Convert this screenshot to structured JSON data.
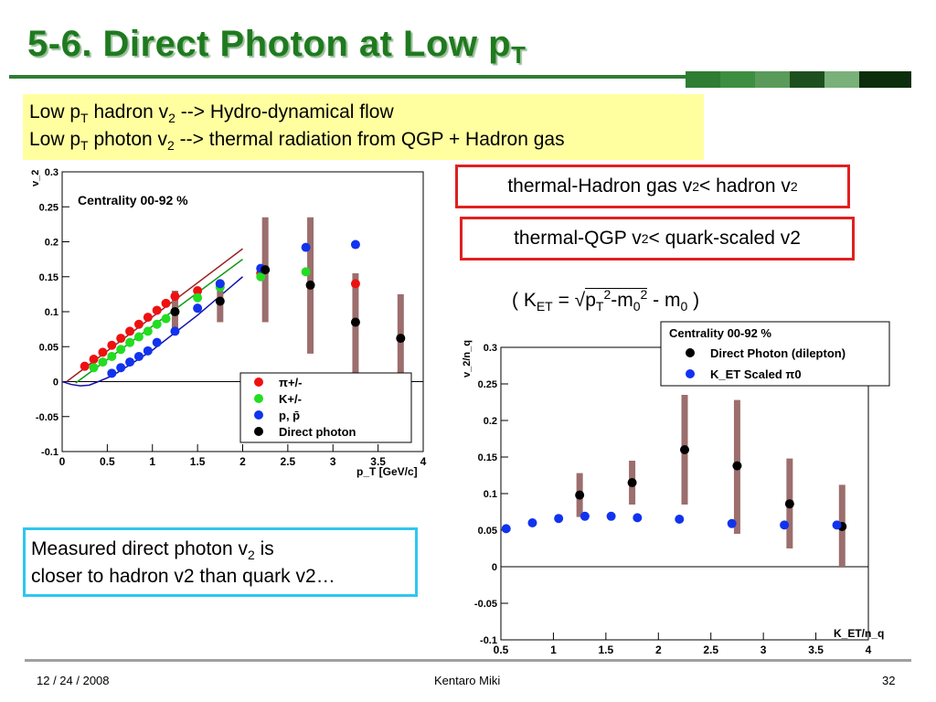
{
  "slide": {
    "title": "5-6. Direct Photon at Low p",
    "title_sub": "T",
    "intro_line1_a": "Low p",
    "intro_line1_sub1": "T",
    "intro_line1_b": " hadron v",
    "intro_line1_sub2": "2",
    "intro_line1_c": " --> Hydro-dynamical flow",
    "intro_line2_a": "Low p",
    "intro_line2_sub1": "T",
    "intro_line2_b": " photon v",
    "intro_line2_sub2": "2",
    "intro_line2_c": " --> thermal radiation from QGP + Hadron gas",
    "box1_a": "thermal-Hadron gas v",
    "box1_sub1": "2",
    "box1_b": " < hadron v",
    "box1_sub2": "2",
    "box2_a": "thermal-QGP v",
    "box2_sub1": "2",
    "box2_b": " < quark-scaled v2",
    "formula_a": "( K",
    "formula_sub1": "ET",
    "formula_b": " = √",
    "formula_c": "p",
    "formula_sub2": "T",
    "formula_sup1": "2",
    "formula_d": "-m",
    "formula_sub3": "0",
    "formula_sup2": "2",
    "formula_e": " - m",
    "formula_sub4": "0",
    "formula_f": " )",
    "bottom_line1_a": "Measured direct photon v",
    "bottom_line1_sub": "2",
    "bottom_line1_b": " is",
    "bottom_line2": "closer to hadron v2 than quark v2…",
    "footer_date": "12 / 24 / 2008",
    "footer_author": "Kentaro Miki",
    "footer_page": "32",
    "colors": {
      "title": "#1f7a1f",
      "intro_bg": "#ffffa0",
      "red_box": "#e02020",
      "blue_box": "#2ec6f0",
      "error_band": "#9c6e6e"
    }
  },
  "chart_data": [
    {
      "type": "scatter",
      "title": "Centrality 00-92 %",
      "xlabel": "p_T [GeV/c]",
      "ylabel": "v_2",
      "xlim": [
        0,
        4
      ],
      "ylim": [
        -0.1,
        0.3
      ],
      "xticks": [
        "0",
        "0.5",
        "1",
        "1.5",
        "2",
        "2.5",
        "3",
        "3.5",
        "4"
      ],
      "yticks": [
        "-0.1",
        "-0.05",
        "0",
        "0.05",
        "0.1",
        "0.15",
        "0.2",
        "0.25",
        "0.3"
      ],
      "legend_position": "bottom-right",
      "series": [
        {
          "name": "π+/-",
          "color": "#ee1111",
          "x": [
            0.25,
            0.35,
            0.45,
            0.55,
            0.65,
            0.75,
            0.85,
            0.95,
            1.05,
            1.15,
            1.25,
            1.5,
            1.75,
            2.2,
            3.25
          ],
          "y": [
            0.022,
            0.032,
            0.042,
            0.052,
            0.062,
            0.072,
            0.082,
            0.092,
            0.102,
            0.112,
            0.122,
            0.13,
            0.14,
            0.155,
            0.14
          ]
        },
        {
          "name": "K+/-",
          "color": "#22dd22",
          "x": [
            0.35,
            0.45,
            0.55,
            0.65,
            0.75,
            0.85,
            0.95,
            1.05,
            1.15,
            1.25,
            1.5,
            1.75,
            2.2,
            2.7
          ],
          "y": [
            0.02,
            0.028,
            0.036,
            0.046,
            0.056,
            0.064,
            0.072,
            0.082,
            0.09,
            0.1,
            0.12,
            0.135,
            0.15,
            0.157
          ]
        },
        {
          "name": "p, p̄",
          "color": "#1133ee",
          "x": [
            0.55,
            0.65,
            0.75,
            0.85,
            0.95,
            1.05,
            1.25,
            1.5,
            1.75,
            2.2,
            2.7,
            3.25
          ],
          "y": [
            0.012,
            0.02,
            0.028,
            0.036,
            0.044,
            0.056,
            0.072,
            0.105,
            0.14,
            0.162,
            0.192,
            0.196
          ]
        },
        {
          "name": "Direct photon",
          "color": "#000000",
          "x": [
            1.25,
            1.75,
            2.25,
            2.75,
            3.25,
            3.75
          ],
          "y": [
            0.1,
            0.115,
            0.16,
            0.138,
            0.085,
            0.062
          ],
          "sys_low": [
            0.07,
            0.085,
            0.085,
            0.04,
            0.0,
            0.0
          ],
          "sys_high": [
            0.13,
            0.145,
            0.235,
            0.235,
            0.155,
            0.125
          ]
        }
      ],
      "curves": [
        {
          "color": "#992222",
          "x": [
            0.05,
            2.0
          ],
          "y": [
            0.0,
            0.19
          ]
        },
        {
          "color": "#119911",
          "x": [
            0.15,
            2.0
          ],
          "y": [
            -0.002,
            0.175
          ]
        },
        {
          "color": "#1111aa",
          "x": [
            0.0,
            0.1,
            0.2,
            0.3,
            0.4,
            0.55,
            0.7,
            1.0,
            1.5,
            2.0
          ],
          "y": [
            0.0,
            -0.004,
            -0.006,
            -0.005,
            0.0,
            0.008,
            0.02,
            0.045,
            0.095,
            0.15
          ]
        }
      ]
    },
    {
      "type": "scatter",
      "title": "Centrality 00-92 %",
      "xlabel": "K_ET/n_q",
      "ylabel": "v_2/n_q",
      "xlim": [
        0.5,
        4
      ],
      "ylim": [
        -0.1,
        0.3
      ],
      "xticks": [
        "0.5",
        "1",
        "1.5",
        "2",
        "2.5",
        "3",
        "3.5",
        "4"
      ],
      "yticks": [
        "-0.1",
        "-0.05",
        "0",
        "0.05",
        "0.1",
        "0.15",
        "0.2",
        "0.25",
        "0.3"
      ],
      "legend_position": "top-right",
      "series": [
        {
          "name": "Direct Photon (dilepton)",
          "color": "#000000",
          "x": [
            1.25,
            1.75,
            2.25,
            2.75,
            3.25,
            3.75
          ],
          "y": [
            0.098,
            0.115,
            0.16,
            0.138,
            0.086,
            0.055
          ],
          "sys_low": [
            0.068,
            0.085,
            0.085,
            0.045,
            0.025,
            0.0
          ],
          "sys_high": [
            0.128,
            0.145,
            0.235,
            0.228,
            0.148,
            0.112
          ]
        },
        {
          "name": "K_ET Scaled π0",
          "color": "#1133ee",
          "x": [
            0.55,
            0.8,
            1.05,
            1.3,
            1.55,
            1.8,
            2.2,
            2.7,
            3.2,
            3.7
          ],
          "y": [
            0.052,
            0.06,
            0.066,
            0.069,
            0.069,
            0.067,
            0.065,
            0.059,
            0.057,
            0.057
          ]
        }
      ]
    }
  ]
}
